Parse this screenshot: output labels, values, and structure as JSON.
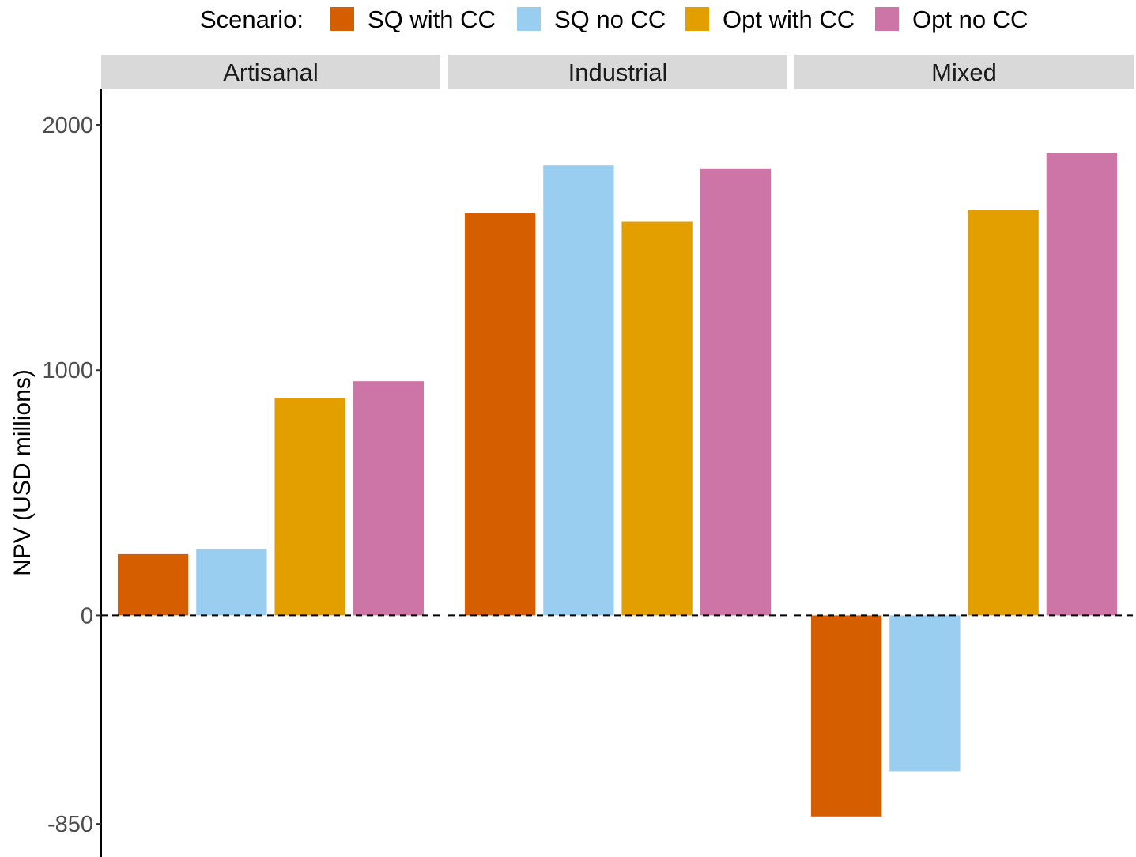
{
  "chart_data": {
    "type": "bar",
    "facets": [
      "Artisanal",
      "Industrial",
      "Mixed"
    ],
    "legend": {
      "title": "Scenario:",
      "position": "top"
    },
    "series": [
      {
        "name": "SQ with CC",
        "color": "#D55E00",
        "values": [
          250,
          1640,
          -820
        ]
      },
      {
        "name": "SQ no CC",
        "color": "#99CEF0",
        "values": [
          270,
          1835,
          -635
        ]
      },
      {
        "name": "Opt with CC",
        "color": "#E39E00",
        "values": [
          885,
          1605,
          1655
        ]
      },
      {
        "name": "Opt no CC",
        "color": "#CC75A6",
        "values": [
          955,
          1820,
          1885
        ]
      }
    ],
    "ylabel": "NPV (USD millions)",
    "xlabel": "",
    "yticks": [
      -850,
      0,
      1000,
      2000
    ],
    "ylim": [
      -985,
      2145
    ],
    "reference_line": {
      "y": 0,
      "style": "dashed"
    },
    "grid": false
  }
}
